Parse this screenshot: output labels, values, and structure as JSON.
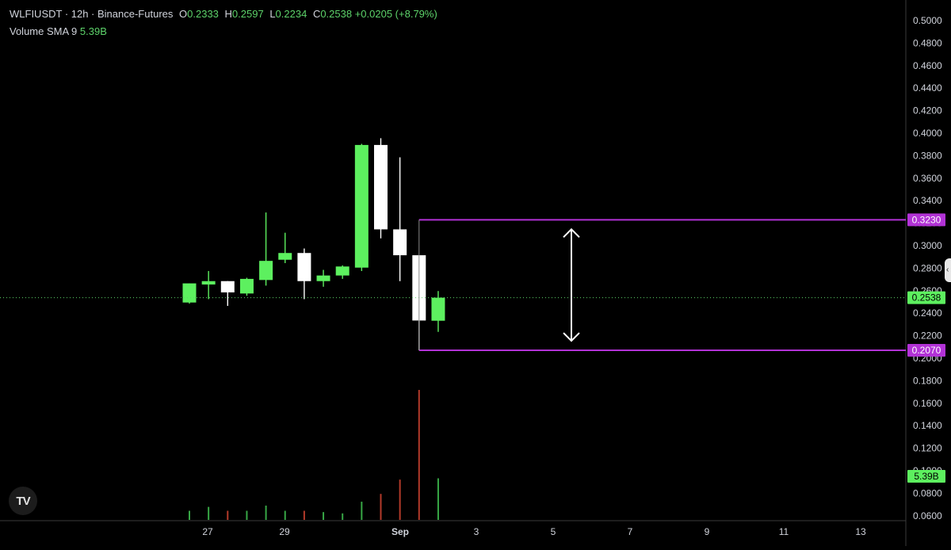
{
  "header": {
    "symbol_line": "WLFIUSDT · 12h · Binance-Futures",
    "open_label": "O",
    "open": "0.2333",
    "high_label": "H",
    "high": "0.2597",
    "low_label": "L",
    "low": "0.2234",
    "close_label": "C",
    "close": "0.2538",
    "change": "+0.0205 (+8.79%)",
    "volume_label": "Volume SMA 9",
    "volume_value": "5.39B"
  },
  "logo_text": "TV",
  "colors": {
    "up": "#5df05f",
    "down": "#ffffff",
    "vol_up": "#37a645",
    "vol_down": "#b33a2a",
    "box": "#b232d6",
    "grid": "#202020",
    "axis_text": "#d1d4dc",
    "dotted": "#5dd36a"
  },
  "chart_data": {
    "type": "candlestick",
    "x_ticks": [
      "27",
      "29",
      "Sep",
      "3",
      "5",
      "7",
      "9",
      "11",
      "13"
    ],
    "y_ticks": [
      "0.5000",
      "0.4800",
      "0.4600",
      "0.4400",
      "0.4200",
      "0.4000",
      "0.3800",
      "0.3600",
      "0.3400",
      "0.3200",
      "0.3000",
      "0.2800",
      "0.2600",
      "0.2400",
      "0.2200",
      "0.2000",
      "0.1800",
      "0.1600",
      "0.1400",
      "0.1200",
      "0.1000",
      "0.0800",
      "0.0600"
    ],
    "ylim": [
      0.06,
      0.5
    ],
    "candles": [
      {
        "o": 0.2495,
        "h": 0.2665,
        "l": 0.2485,
        "c": 0.2665
      },
      {
        "o": 0.2655,
        "h": 0.2775,
        "l": 0.2525,
        "c": 0.2685
      },
      {
        "o": 0.2685,
        "h": 0.2685,
        "l": 0.2465,
        "c": 0.2585
      },
      {
        "o": 0.2575,
        "h": 0.2715,
        "l": 0.2555,
        "c": 0.2705
      },
      {
        "o": 0.2695,
        "h": 0.3295,
        "l": 0.2645,
        "c": 0.2865
      },
      {
        "o": 0.2875,
        "h": 0.3115,
        "l": 0.2845,
        "c": 0.2935
      },
      {
        "o": 0.2935,
        "h": 0.2975,
        "l": 0.2525,
        "c": 0.2685
      },
      {
        "o": 0.2685,
        "h": 0.2785,
        "l": 0.2635,
        "c": 0.2735
      },
      {
        "o": 0.2735,
        "h": 0.2825,
        "l": 0.2705,
        "c": 0.2815
      },
      {
        "o": 0.2805,
        "h": 0.3905,
        "l": 0.2775,
        "c": 0.3895
      },
      {
        "o": 0.3895,
        "h": 0.3955,
        "l": 0.3065,
        "c": 0.3145
      },
      {
        "o": 0.3145,
        "h": 0.3785,
        "l": 0.2685,
        "c": 0.2915
      },
      {
        "o": 0.2915,
        "h": 0.2915,
        "l": 0.207,
        "c": 0.2335
      },
      {
        "o": 0.2333,
        "h": 0.2597,
        "l": 0.2234,
        "c": 0.2538
      }
    ],
    "volume_relative": [
      0.07,
      0.1,
      0.07,
      0.07,
      0.11,
      0.07,
      0.07,
      0.06,
      0.05,
      0.14,
      0.2,
      0.31,
      1.0,
      0.32
    ],
    "current_price": "0.2538",
    "current_volume": "5.39B",
    "range_box": {
      "top": "0.3230",
      "bottom": "0.2070"
    }
  }
}
